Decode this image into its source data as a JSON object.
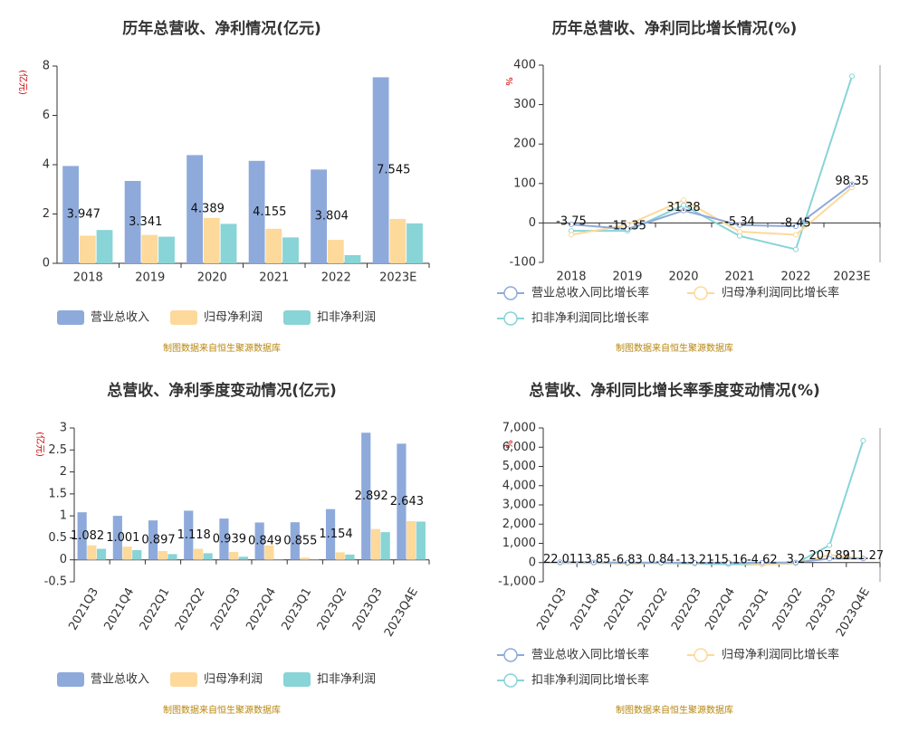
{
  "chart_data": [
    {
      "type": "bar",
      "title": "历年总营收、净利情况(亿元)",
      "y_label": "(亿元)",
      "categories": [
        "2018",
        "2019",
        "2020",
        "2021",
        "2022",
        "2023E"
      ],
      "series": [
        {
          "name": "营业总收入",
          "color": "#8eaadb",
          "values": [
            3.947,
            3.341,
            4.389,
            4.155,
            3.804,
            7.545
          ]
        },
        {
          "name": "归母净利润",
          "color": "#fdd99b",
          "values": [
            1.12,
            1.15,
            1.84,
            1.4,
            0.95,
            1.8
          ]
        },
        {
          "name": "扣非净利润",
          "color": "#88d4d6",
          "values": [
            1.35,
            1.08,
            1.6,
            1.05,
            0.33,
            1.62
          ]
        }
      ],
      "ylim": [
        0,
        8
      ],
      "yticks": [
        0,
        2,
        4,
        6,
        8
      ],
      "source": "制图数据来自恒生聚源数据库"
    },
    {
      "type": "line",
      "title": "历年总营收、净利同比增长情况(%)",
      "y_label": "%",
      "categories": [
        "2018",
        "2019",
        "2020",
        "2021",
        "2022",
        "2023E"
      ],
      "series": [
        {
          "name": "营业总收入同比增长率",
          "color": "#8eaadb",
          "values": [
            -3.75,
            -15.35,
            31.38,
            -5.34,
            -8.45,
            98.35
          ]
        },
        {
          "name": "归母净利润同比增长率",
          "color": "#fdd99b",
          "values": [
            -30,
            -5,
            58,
            -22,
            -30,
            90
          ]
        },
        {
          "name": "扣非净利润同比增长率",
          "color": "#88d4d6",
          "values": [
            -20,
            -20,
            45,
            -33,
            -67,
            372
          ]
        }
      ],
      "ylim": [
        -100,
        400
      ],
      "yticks": [
        -100,
        0,
        100,
        200,
        300,
        400
      ],
      "source": "制图数据来自恒生聚源数据库"
    },
    {
      "type": "bar",
      "title": "总营收、净利季度变动情况(亿元)",
      "y_label": "(亿元)",
      "categories": [
        "2021Q3",
        "2021Q4",
        "2022Q1",
        "2022Q2",
        "2022Q3",
        "2022Q4",
        "2023Q1",
        "2023Q2",
        "2023Q3",
        "2023Q4E"
      ],
      "series": [
        {
          "name": "营业总收入",
          "color": "#8eaadb",
          "values": [
            1.082,
            1.001,
            0.897,
            1.118,
            0.939,
            0.849,
            0.855,
            1.154,
            2.892,
            2.643
          ]
        },
        {
          "name": "归母净利润",
          "color": "#fdd99b",
          "values": [
            0.33,
            0.3,
            0.2,
            0.25,
            0.18,
            0.33,
            0.05,
            0.17,
            0.7,
            0.88
          ]
        },
        {
          "name": "扣非净利润",
          "color": "#88d4d6",
          "values": [
            0.25,
            0.22,
            0.13,
            0.15,
            0.07,
            0.01,
            0.01,
            0.12,
            0.63,
            0.87
          ]
        }
      ],
      "ylim": [
        -0.5,
        3
      ],
      "yticks": [
        -0.5,
        0,
        0.5,
        1,
        1.5,
        2,
        2.5,
        3
      ],
      "source": "制图数据来自恒生聚源数据库"
    },
    {
      "type": "line",
      "title": "总营收、净利同比增长率季度变动情况(%)",
      "y_label": "%",
      "categories": [
        "2021Q3",
        "2021Q4",
        "2022Q1",
        "2022Q2",
        "2022Q3",
        "2022Q4",
        "2023Q1",
        "2023Q2",
        "2023Q3",
        "2023Q4E"
      ],
      "series": [
        {
          "name": "营业总收入同比增长率",
          "color": "#8eaadb",
          "values": [
            22.01,
            13.85,
            -6.83,
            0.84,
            -13.21,
            -15.16,
            -4.62,
            3.2,
            207.89,
            211.27
          ]
        },
        {
          "name": "归母净利润同比增长率",
          "color": "#fdd99b",
          "values": [
            -20,
            -10,
            -40,
            -20,
            -30,
            20,
            -80,
            -30,
            400,
            200
          ]
        },
        {
          "name": "扣非净利润同比增长率",
          "color": "#88d4d6",
          "values": [
            -30,
            -20,
            -50,
            -30,
            -60,
            -90,
            -95,
            -40,
            900,
            6350
          ]
        }
      ],
      "ylim": [
        -1000,
        7000
      ],
      "yticks": [
        {
          "value": -1000,
          "label": "-1,000"
        },
        0,
        {
          "value": 1000,
          "label": "1,000"
        },
        {
          "value": 2000,
          "label": "2,000"
        },
        {
          "value": 3000,
          "label": "3,000"
        },
        {
          "value": 4000,
          "label": "4,000"
        },
        {
          "value": 5000,
          "label": "5,000"
        },
        {
          "value": 6000,
          "label": "6,000"
        },
        {
          "value": 7000,
          "label": "7,000"
        }
      ],
      "source": "制图数据来自恒生聚源数据库"
    }
  ]
}
